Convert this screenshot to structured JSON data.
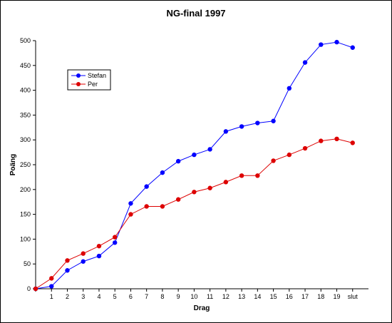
{
  "chart_data": {
    "type": "line",
    "title": "NG-final 1997",
    "xlabel": "Drag",
    "ylabel": "Poäng",
    "categories": [
      "",
      "1",
      "2",
      "3",
      "4",
      "5",
      "6",
      "7",
      "8",
      "9",
      "10",
      "11",
      "12",
      "13",
      "14",
      "15",
      "16",
      "17",
      "18",
      "19",
      "slut"
    ],
    "ylim": [
      0,
      500
    ],
    "yticks": [
      0,
      50,
      100,
      150,
      200,
      250,
      300,
      350,
      400,
      450,
      500
    ],
    "grid": false,
    "legend_position": "top-left",
    "series": [
      {
        "name": "Stefan",
        "color": "#0000ff",
        "values": [
          0,
          5,
          37,
          55,
          66,
          93,
          172,
          206,
          234,
          257,
          270,
          281,
          317,
          327,
          334,
          338,
          404,
          456,
          492,
          497,
          486
        ]
      },
      {
        "name": "Per",
        "color": "#dd0000",
        "values": [
          0,
          21,
          57,
          71,
          86,
          104,
          150,
          166,
          166,
          180,
          195,
          203,
          215,
          228,
          228,
          258,
          270,
          283,
          298,
          302,
          294
        ]
      }
    ]
  }
}
